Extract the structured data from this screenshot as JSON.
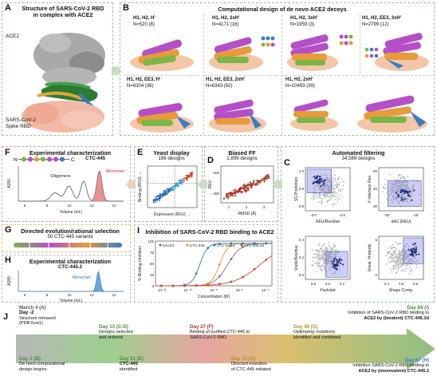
{
  "panels": {
    "A": {
      "letter": "A",
      "title_line1": "Structure of SARS-CoV-2 RBD",
      "title_line2": "in complex with ACE2",
      "label_ace2": "ACE2",
      "label_rbd_line1": "SARS-CoV-2",
      "label_rbd_line2": "Spike RBD"
    },
    "B": {
      "letter": "B",
      "title": "Computational design of de novo ACE2 decoys",
      "cells": [
        {
          "label": "H1, H2, H'",
          "n": "N=520 (8)"
        },
        {
          "label": "H1, H2, 2xH'",
          "n": "N=4171 (16)"
        },
        {
          "label": "H1, H2, 3xH'",
          "n": "N=1959 (3)"
        },
        {
          "label": "H1, H2, EE3, 3xH'",
          "n": "N=2799 (12)"
        },
        {
          "label": "H1, H2, EE3, H'",
          "n": "N=6304 (36)"
        },
        {
          "label": "H1, H2, EE3, 2xH'",
          "n": "N=8343 (82)"
        },
        {
          "label": "H1, H2, 2xH'",
          "n": "N=10493 (39)"
        }
      ],
      "nc_n": "N",
      "nc_c": "C"
    },
    "C": {
      "letter": "C",
      "title": "Automated filtering",
      "sub": "34,589 designs",
      "plots": [
        {
          "ylabel": "SS Prediction",
          "xlabel": "REU/Residue",
          "yticks": [
            "1.0",
            "0.9",
            "0.8"
          ],
          "xticks": [
            "-3.0",
            "-2.5"
          ]
        },
        {
          "ylabel": "# Interface Res",
          "xlabel": "ddG (REU)",
          "yticks": [
            "50",
            "40",
            "30"
          ],
          "xticks": [
            "-50",
            "-25"
          ]
        },
        {
          "ylabel": "Voids/Residue",
          "xlabel": "Packstat",
          "yticks": [
            "0.4",
            "0.2",
            "0.0"
          ],
          "xticks": [
            "0.5",
            "0.6",
            "0.7"
          ]
        },
        {
          "ylabel": "Unsat. H-bonds",
          "xlabel": "Shape Comp.",
          "yticks": [
            "5",
            "0"
          ],
          "xticks": [
            "0.4",
            "0.6",
            "0.8"
          ]
        }
      ]
    },
    "D": {
      "letter": "D",
      "title": "Biased FF",
      "sub": "1,899 designs",
      "ylabel": "REU",
      "xlabel": "RMSD (Å)",
      "yticks": [
        "-200",
        "-400"
      ],
      "xticks": [
        "1",
        "2",
        "3"
      ]
    },
    "E": {
      "letter": "E",
      "title": "Yeast display",
      "sub": "196 designs",
      "ylabel": "Binding (RFU) →",
      "xlabel": "Expression (RFU) →"
    },
    "F": {
      "letter": "F",
      "title": "Experimental characterization",
      "sub": "CTC-445",
      "oligomers": "Oligomers",
      "monomer": "Monomer",
      "ylabel": "A280",
      "xlabel": "Volume (mL)",
      "xticks": [
        "6",
        "8",
        "10",
        "12",
        "14"
      ],
      "seq": "N-[●●●●●●●●]-C"
    },
    "G": {
      "letter": "G",
      "title": "Directed evolution/rational selection",
      "sub": "50 CTC-445 variants"
    },
    "H": {
      "letter": "H",
      "title": "Experimental characterization",
      "sub": "CTC-445.2",
      "monomer": "Monomer",
      "ylabel": "A280",
      "xlabel": "Volume (mL)",
      "xticks": [
        "6",
        "8",
        "10",
        "12",
        "14"
      ]
    },
    "I": {
      "letter": "I",
      "title": "Inhibition of SARS-CoV-2 RBD binding to ACE2",
      "ylabel": "% Binding Inhibition",
      "xlabel": "Concentration (M)",
      "yticks": [
        "100",
        "75",
        "50",
        "25",
        "0"
      ],
      "xticks": [
        "10⁻¹²",
        "10⁻¹⁰",
        "10⁻⁸",
        "10⁻⁶",
        "10⁻⁴"
      ],
      "legend": [
        "hACE2",
        "CTC-445",
        "CTC-445.2",
        "CTC-445.2d"
      ],
      "colors": [
        "#7a7a7a",
        "#e69a2e",
        "#2f78b9",
        "#d9432e"
      ]
    },
    "J": {
      "letter": "J",
      "top": [
        {
          "day": "March 4 (A)",
          "lines": [
            "Day -2",
            "Structure released",
            "(PDB 6vw1)"
          ]
        },
        {
          "day": "Day 13 (C-D)",
          "lines": [
            "Designs selected",
            "and ordered"
          ]
        },
        {
          "day": "Day 27 (F)",
          "lines": [
            "Binding of purified CTC-445 to",
            "SARS-CoV-2 RBD"
          ]
        },
        {
          "day": "Day 49 (G)",
          "lines": [
            "Optimizing mutations",
            "identified and combined"
          ]
        },
        {
          "day": "Day 69 (I)",
          "lines": [
            "Inhibition of SARS-CoV-2 RBD binding to",
            "ACE2 by (bivalent) CTC-445.2d"
          ]
        }
      ],
      "bottom": [
        {
          "day": "Day 1 (B)",
          "lines": [
            "De novo computational",
            "design begins"
          ]
        },
        {
          "day": "Day 21 (E)",
          "lines": [
            "CTC-445",
            "identified"
          ]
        },
        {
          "day": "Day 33 (G)",
          "lines": [
            "Directed evolution",
            "of CTC-445 initiated"
          ]
        },
        {
          "day": "Day 67 (H)",
          "lines": [
            "Inhibition SARS-CoV-2 RBD binding to",
            "ACE2 by (monovalent) CTC-445.2"
          ]
        }
      ]
    }
  },
  "colors": {
    "green_dash": "#9cc49a",
    "red_dash": "#e6a3a3",
    "helix_green": "#7ab648",
    "helix_orange": "#e79b3b",
    "helix_purple": "#b54fc7",
    "helix_blue": "#3a7cc2",
    "rbd_pink": "#f2b9a6",
    "ace2_gray": "#9a9a9a"
  }
}
